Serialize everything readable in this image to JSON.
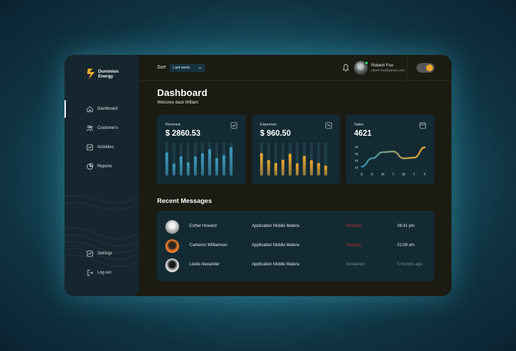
{
  "brand": {
    "name_line1": "Dominion",
    "name_line2": "Energy",
    "accent": "#f0a72e"
  },
  "sidebar": {
    "items": [
      {
        "label": "Dashboard",
        "icon": "home-icon",
        "active": true
      },
      {
        "label": "Customer's",
        "icon": "users-icon"
      },
      {
        "label": "Activities",
        "icon": "activity-icon"
      },
      {
        "label": "Reports",
        "icon": "report-icon"
      }
    ],
    "bottom_items": [
      {
        "label": "Settings",
        "icon": "settings-icon"
      },
      {
        "label": "Log out",
        "icon": "logout-icon"
      }
    ]
  },
  "topbar": {
    "sort_label": "Sort",
    "sort_value": "Last week",
    "user_name": "Robert Fox",
    "user_email": "robert.fox@yahoo.com",
    "theme_toggle_on": true
  },
  "page": {
    "title": "Dashboard",
    "subtitle": "Welcome back William"
  },
  "cards": [
    {
      "label": "Revenue",
      "value": "$ 2860.53",
      "icon": "trend-up-icon",
      "color": "#3f9bbd"
    },
    {
      "label": "Expenses",
      "value": "$ 960.50",
      "icon": "trend-down-icon",
      "color": "#f0a72e"
    },
    {
      "label": "Sales",
      "value": "4621",
      "icon": "calendar-icon"
    }
  ],
  "chart_data": [
    {
      "type": "bar",
      "series": [
        {
          "values": [
            0.7,
            0.36,
            0.58,
            0.4,
            0.58,
            0.68,
            0.8,
            0.53,
            0.62,
            0.86
          ]
        }
      ],
      "ylim": [
        0,
        1
      ]
    },
    {
      "type": "bar",
      "series": [
        {
          "values": [
            0.68,
            0.47,
            0.38,
            0.48,
            0.66,
            0.37,
            0.6,
            0.46,
            0.38,
            0.3
          ]
        }
      ],
      "ylim": [
        0,
        1
      ]
    },
    {
      "type": "line",
      "categories": [
        "S",
        "S",
        "M",
        "T",
        "W",
        "T",
        "F"
      ],
      "yticks": [
        "4k",
        "3k",
        "2k",
        "1k"
      ],
      "series": [
        {
          "values": [
            1100,
            2300,
            3200,
            3300,
            2300,
            2400,
            3900
          ]
        }
      ],
      "ylim": [
        1000,
        4000
      ]
    }
  ],
  "messages": {
    "title": "Recent Messages",
    "rows": [
      {
        "name": "Esther Howard",
        "app": "Application Mobile Matera",
        "status": "Pending",
        "time": "06:41 pm",
        "status_color": "#c0302b"
      },
      {
        "name": "Cameron Williamson",
        "app": "Application Mobile Matera",
        "status": "Pending",
        "time": "01:09 am",
        "status_color": "#c0302b"
      },
      {
        "name": "Leslie Alexander",
        "app": "Application Mobile Matera",
        "status": "Answered",
        "time": "5 months ago",
        "status_color": "#7f8a8f"
      }
    ]
  }
}
